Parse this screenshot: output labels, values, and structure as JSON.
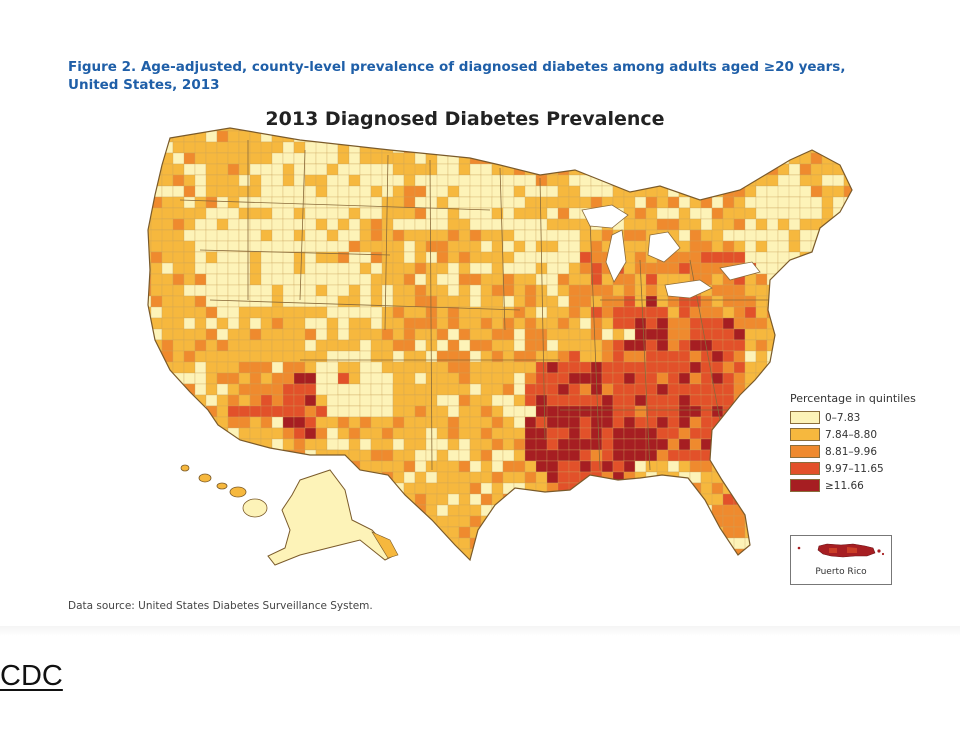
{
  "figure": {
    "caption_line1": "Figure 2. Age-adjusted, county-level prevalence of diagnosed diabetes among adults aged ≥20 years,",
    "caption_line2": "United States, 2013",
    "map_title": "2013 Diagnosed Diabetes Prevalence",
    "data_source": "Data source: United States Diabetes Surveillance System."
  },
  "legend": {
    "title": "Percentage in quintiles",
    "items": [
      {
        "label": "0–7.83",
        "color": "#fdf3b8"
      },
      {
        "label": "7.84–8.80",
        "color": "#f6b83e"
      },
      {
        "label": "8.81–9.96",
        "color": "#ef8a2e"
      },
      {
        "label": "9.97–11.65",
        "color": "#e2512a"
      },
      {
        "label": "≥11.66",
        "color": "#a61e22"
      }
    ]
  },
  "inset": {
    "puerto_rico_label": "Puerto Rico"
  },
  "link": {
    "text": "CDC"
  }
}
